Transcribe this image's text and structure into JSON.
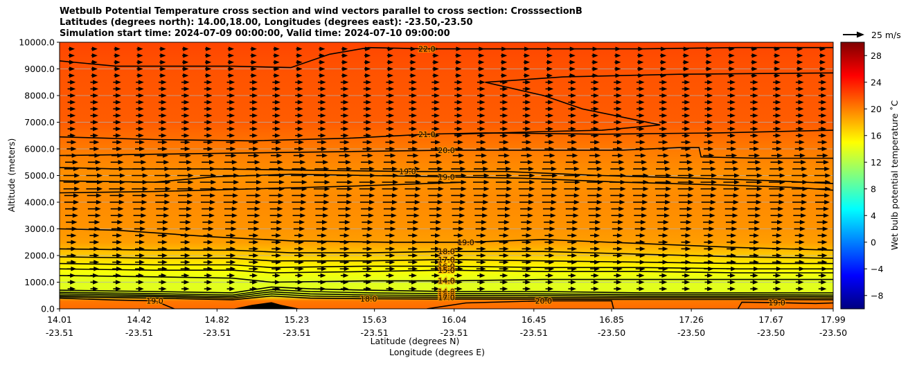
{
  "chart_data": {
    "type": "heatmap",
    "title_lines": [
      "Wetbulb Potential Temperature cross section and wind vectors parallel to cross section: CrosssectionB",
      "Latitudes (degrees north): 14.00,18.00, Longitudes (degrees east): -23.50,-23.50",
      "Simulation start time: 2024-07-09 00:00:00, Valid time: 2024-07-10 09:00:00"
    ],
    "xlabel_lines": [
      "Latitude (degrees N)",
      "Longitude (degrees E)"
    ],
    "ylabel": "Altitude (meters)",
    "colorbar_label": "Wet bulb potential temperature ˚C",
    "quiver_key_label": "25 m/s",
    "colorbar_range": [
      -10,
      30
    ],
    "colorbar_ticks": [
      "−8",
      "−4",
      "0",
      "4",
      "8",
      "12",
      "16",
      "20",
      "24",
      "28"
    ],
    "colorbar_tick_values": [
      -8,
      -4,
      0,
      4,
      8,
      12,
      16,
      20,
      24,
      28
    ],
    "colormap": "jet",
    "ylim": [
      0,
      10000
    ],
    "y_ticks": [
      "0.0",
      "1000.0",
      "2000.0",
      "3000.0",
      "4000.0",
      "5000.0",
      "6000.0",
      "7000.0",
      "8000.0",
      "9000.0",
      "10000.0"
    ],
    "y_tick_values": [
      0,
      1000,
      2000,
      3000,
      4000,
      5000,
      6000,
      7000,
      8000,
      9000,
      10000
    ],
    "xlim": [
      14.01,
      17.99
    ],
    "x_ticks": [
      {
        "lat": "14.01",
        "lon": "-23.51",
        "value": 14.01
      },
      {
        "lat": "14.42",
        "lon": "-23.51",
        "value": 14.42
      },
      {
        "lat": "14.82",
        "lon": "-23.51",
        "value": 14.82
      },
      {
        "lat": "15.23",
        "lon": "-23.51",
        "value": 15.23
      },
      {
        "lat": "15.63",
        "lon": "-23.51",
        "value": 15.63
      },
      {
        "lat": "16.04",
        "lon": "-23.51",
        "value": 16.04
      },
      {
        "lat": "16.45",
        "lon": "-23.51",
        "value": 16.45
      },
      {
        "lat": "16.85",
        "lon": "-23.50",
        "value": 16.85
      },
      {
        "lat": "17.26",
        "lon": "-23.50",
        "value": 17.26
      },
      {
        "lat": "17.67",
        "lon": "-23.50",
        "value": 17.67
      },
      {
        "lat": "17.99",
        "lon": "-23.50",
        "value": 17.99
      }
    ],
    "grid": "horizontal",
    "field_profile": [
      {
        "z": 0,
        "t": 20.8
      },
      {
        "z": 300,
        "t": 20.3
      },
      {
        "z": 500,
        "t": 14.0
      },
      {
        "z": 1000,
        "t": 13.8
      },
      {
        "z": 1500,
        "t": 15.0
      },
      {
        "z": 2000,
        "t": 17.0
      },
      {
        "z": 2500,
        "t": 18.8
      },
      {
        "z": 3000,
        "t": 19.2
      },
      {
        "z": 4000,
        "t": 19.6
      },
      {
        "z": 5000,
        "t": 19.3
      },
      {
        "z": 6000,
        "t": 20.2
      },
      {
        "z": 7000,
        "t": 21.4
      },
      {
        "z": 8000,
        "t": 21.6
      },
      {
        "z": 9000,
        "t": 21.8
      },
      {
        "z": 10000,
        "t": 22.3
      }
    ],
    "contours": [
      {
        "label": "22.0",
        "points": [
          [
            14.01,
            9300
          ],
          [
            14.3,
            9100
          ],
          [
            14.9,
            9100
          ],
          [
            15.2,
            9050
          ],
          [
            15.4,
            9550
          ],
          [
            15.6,
            9800
          ],
          [
            15.9,
            9750
          ],
          [
            16.5,
            9750
          ],
          [
            17.0,
            9750
          ],
          [
            17.5,
            9800
          ],
          [
            17.99,
            9800
          ]
        ]
      },
      {
        "label": "",
        "points": [
          [
            16.2,
            8500
          ],
          [
            16.5,
            8000
          ],
          [
            16.7,
            7500
          ],
          [
            16.9,
            7200
          ],
          [
            17.1,
            6900
          ],
          [
            16.8,
            6700
          ],
          [
            16.5,
            6650
          ],
          [
            16.04,
            6550
          ]
        ]
      },
      {
        "label": "",
        "points": [
          [
            16.2,
            8500
          ],
          [
            16.6,
            8700
          ],
          [
            17.2,
            8800
          ],
          [
            17.99,
            8850
          ]
        ]
      },
      {
        "label": "21.0",
        "points": [
          [
            14.01,
            6450
          ],
          [
            14.5,
            6350
          ],
          [
            15.0,
            6300
          ],
          [
            15.5,
            6400
          ],
          [
            15.9,
            6550
          ],
          [
            16.2,
            6600
          ],
          [
            16.8,
            6550
          ],
          [
            17.4,
            6600
          ],
          [
            17.99,
            6700
          ]
        ]
      },
      {
        "label": "20.0",
        "points": [
          [
            14.01,
            5750
          ],
          [
            14.5,
            5800
          ],
          [
            15.0,
            5850
          ],
          [
            15.5,
            5900
          ],
          [
            16.0,
            5950
          ],
          [
            16.5,
            5950
          ],
          [
            16.9,
            5950
          ],
          [
            17.2,
            6050
          ],
          [
            17.3,
            6050
          ],
          [
            17.31,
            5700
          ],
          [
            17.6,
            5650
          ],
          [
            17.99,
            5650
          ]
        ]
      },
      {
        "label": "19.0",
        "points": [
          [
            14.01,
            5300
          ],
          [
            14.3,
            5250
          ],
          [
            14.8,
            5250
          ],
          [
            15.3,
            5200
          ],
          [
            15.8,
            5150
          ],
          [
            16.3,
            5150
          ],
          [
            16.8,
            5000
          ],
          [
            17.3,
            4900
          ],
          [
            17.7,
            4800
          ],
          [
            17.99,
            4700
          ]
        ]
      },
      {
        "label": "19.0",
        "points": [
          [
            14.01,
            4800
          ],
          [
            14.5,
            4750
          ],
          [
            14.8,
            4950
          ],
          [
            15.2,
            5050
          ],
          [
            15.6,
            5000
          ],
          [
            16.0,
            4950
          ],
          [
            16.4,
            4900
          ],
          [
            16.9,
            4750
          ],
          [
            17.4,
            4650
          ],
          [
            17.8,
            4550
          ],
          [
            17.99,
            4450
          ]
        ]
      },
      {
        "label": "",
        "points": [
          [
            14.01,
            4350
          ],
          [
            14.5,
            4400
          ],
          [
            15.0,
            4500
          ],
          [
            15.5,
            4600
          ],
          [
            15.9,
            4700
          ],
          [
            16.1,
            4750
          ]
        ]
      },
      {
        "label": "19.0",
        "points": [
          [
            14.01,
            3000
          ],
          [
            14.3,
            2950
          ],
          [
            14.8,
            2700
          ],
          [
            15.2,
            2550
          ],
          [
            15.7,
            2500
          ],
          [
            16.1,
            2500
          ],
          [
            16.5,
            2600
          ],
          [
            17.0,
            2450
          ],
          [
            17.5,
            2300
          ],
          [
            17.99,
            2200
          ]
        ]
      },
      {
        "label": "18.0",
        "points": [
          [
            14.01,
            2250
          ],
          [
            14.5,
            2200
          ],
          [
            14.9,
            2200
          ],
          [
            15.2,
            2100
          ],
          [
            15.6,
            2100
          ],
          [
            16.0,
            2150
          ],
          [
            16.5,
            2150
          ],
          [
            17.0,
            2050
          ],
          [
            17.5,
            1950
          ],
          [
            17.99,
            1900
          ]
        ]
      },
      {
        "label": "17.0",
        "points": [
          [
            14.01,
            1950
          ],
          [
            14.5,
            1900
          ],
          [
            14.9,
            1900
          ],
          [
            15.1,
            1800
          ],
          [
            15.6,
            1800
          ],
          [
            16.0,
            1850
          ],
          [
            16.5,
            1800
          ],
          [
            17.0,
            1750
          ],
          [
            17.5,
            1700
          ],
          [
            17.99,
            1700
          ]
        ]
      },
      {
        "label": "16.0",
        "points": [
          [
            14.01,
            1700
          ],
          [
            14.5,
            1650
          ],
          [
            14.9,
            1650
          ],
          [
            15.1,
            1550
          ],
          [
            15.6,
            1600
          ],
          [
            16.0,
            1600
          ],
          [
            16.5,
            1550
          ],
          [
            17.0,
            1550
          ],
          [
            17.5,
            1500
          ],
          [
            17.99,
            1500
          ]
        ]
      },
      {
        "label": "15.0",
        "points": [
          [
            14.01,
            1500
          ],
          [
            14.5,
            1450
          ],
          [
            14.9,
            1450
          ],
          [
            15.1,
            1350
          ],
          [
            15.6,
            1400
          ],
          [
            16.0,
            1450
          ],
          [
            16.5,
            1400
          ],
          [
            17.0,
            1400
          ],
          [
            17.5,
            1350
          ],
          [
            17.99,
            1350
          ]
        ]
      },
      {
        "label": "14.0",
        "points": [
          [
            14.01,
            1250
          ],
          [
            14.5,
            1200
          ],
          [
            14.9,
            1150
          ],
          [
            15.1,
            1000
          ],
          [
            15.6,
            1050
          ],
          [
            16.0,
            1050
          ],
          [
            16.5,
            1100
          ],
          [
            17.0,
            1100
          ],
          [
            17.5,
            1100
          ],
          [
            17.99,
            1100
          ]
        ]
      },
      {
        "label": "14.0",
        "points": [
          [
            14.01,
            700
          ],
          [
            14.5,
            650
          ],
          [
            14.9,
            600
          ],
          [
            15.1,
            820
          ],
          [
            15.3,
            750
          ],
          [
            15.6,
            700
          ],
          [
            16.0,
            650
          ],
          [
            16.5,
            650
          ],
          [
            17.0,
            600
          ],
          [
            17.5,
            600
          ],
          [
            17.99,
            600
          ]
        ]
      },
      {
        "label": "15.0",
        "points": [
          [
            14.01,
            620
          ],
          [
            14.5,
            570
          ],
          [
            14.9,
            520
          ],
          [
            15.1,
            720
          ],
          [
            15.3,
            650
          ],
          [
            15.6,
            600
          ],
          [
            16.0,
            570
          ],
          [
            16.5,
            560
          ],
          [
            17.0,
            530
          ],
          [
            17.5,
            530
          ],
          [
            17.99,
            520
          ]
        ]
      },
      {
        "label": "16.0",
        "points": [
          [
            14.01,
            560
          ],
          [
            14.5,
            510
          ],
          [
            14.9,
            460
          ],
          [
            15.1,
            640
          ],
          [
            15.3,
            560
          ],
          [
            15.6,
            520
          ],
          [
            16.0,
            500
          ],
          [
            16.5,
            490
          ],
          [
            17.0,
            470
          ],
          [
            17.5,
            470
          ],
          [
            17.99,
            460
          ]
        ]
      },
      {
        "label": "17.0",
        "points": [
          [
            14.01,
            500
          ],
          [
            14.5,
            460
          ],
          [
            14.9,
            400
          ],
          [
            15.1,
            560
          ],
          [
            15.3,
            480
          ],
          [
            15.6,
            450
          ],
          [
            16.0,
            430
          ],
          [
            16.5,
            420
          ],
          [
            17.0,
            410
          ],
          [
            17.5,
            410
          ],
          [
            17.99,
            400
          ]
        ]
      },
      {
        "label": "18.0",
        "points": [
          [
            14.01,
            450
          ],
          [
            14.5,
            400
          ],
          [
            14.9,
            340
          ],
          [
            15.1,
            480
          ],
          [
            15.3,
            400
          ],
          [
            15.6,
            380
          ],
          [
            16.0,
            370
          ],
          [
            16.5,
            360
          ],
          [
            17.0,
            350
          ],
          [
            17.5,
            350
          ],
          [
            17.99,
            340
          ]
        ]
      },
      {
        "label": "19.0",
        "points": [
          [
            14.01,
            400
          ],
          [
            14.3,
            330
          ],
          [
            14.5,
            300
          ],
          [
            14.6,
            0
          ]
        ]
      },
      {
        "label": "20.0",
        "points": [
          [
            15.9,
            0
          ],
          [
            16.1,
            220
          ],
          [
            16.5,
            300
          ],
          [
            16.85,
            300
          ],
          [
            16.86,
            0
          ]
        ]
      },
      {
        "label": "19.0",
        "points": [
          [
            17.5,
            0
          ],
          [
            17.52,
            250
          ],
          [
            17.7,
            230
          ],
          [
            17.9,
            200
          ],
          [
            17.99,
            220
          ]
        ]
      }
    ],
    "mountain": [
      [
        14.9,
        0
      ],
      [
        15.0,
        150
      ],
      [
        15.1,
        250
      ],
      [
        15.15,
        150
      ],
      [
        15.25,
        0
      ]
    ],
    "wind_arrows": [
      {
        "z": 9750,
        "u": 3
      },
      {
        "z": 9500,
        "u": 3
      },
      {
        "z": 9250,
        "u": 3
      },
      {
        "z": 9000,
        "u": 3
      },
      {
        "z": 8750,
        "u": 3
      },
      {
        "z": 8500,
        "u": 4
      },
      {
        "z": 8250,
        "u": 4
      },
      {
        "z": 8000,
        "u": 4
      },
      {
        "z": 7750,
        "u": 4
      },
      {
        "z": 7500,
        "u": 4
      },
      {
        "z": 7250,
        "u": 4
      },
      {
        "z": 7000,
        "u": 4
      },
      {
        "z": 6750,
        "u": 4
      },
      {
        "z": 6500,
        "u": 4
      },
      {
        "z": 6250,
        "u": 5
      },
      {
        "z": 6000,
        "u": 5
      },
      {
        "z": 5750,
        "u": 6
      },
      {
        "z": 5500,
        "u": 7
      },
      {
        "z": 5250,
        "u": 8
      },
      {
        "z": 5000,
        "u": 9
      },
      {
        "z": 4750,
        "u": 9
      },
      {
        "z": 4500,
        "u": 9
      },
      {
        "z": 4250,
        "u": 8
      },
      {
        "z": 4000,
        "u": 8
      },
      {
        "z": 3750,
        "u": 7
      },
      {
        "z": 3500,
        "u": 7
      },
      {
        "z": 3250,
        "u": 6
      },
      {
        "z": 3000,
        "u": 6
      },
      {
        "z": 2750,
        "u": 5
      },
      {
        "z": 2500,
        "u": 5
      },
      {
        "z": 2250,
        "u": 5
      },
      {
        "z": 2000,
        "u": 5
      },
      {
        "z": 1750,
        "u": 5
      },
      {
        "z": 1500,
        "u": 5
      },
      {
        "z": 1250,
        "u": 4
      },
      {
        "z": 1000,
        "u": 4
      },
      {
        "z": 750,
        "u": 4
      }
    ]
  }
}
